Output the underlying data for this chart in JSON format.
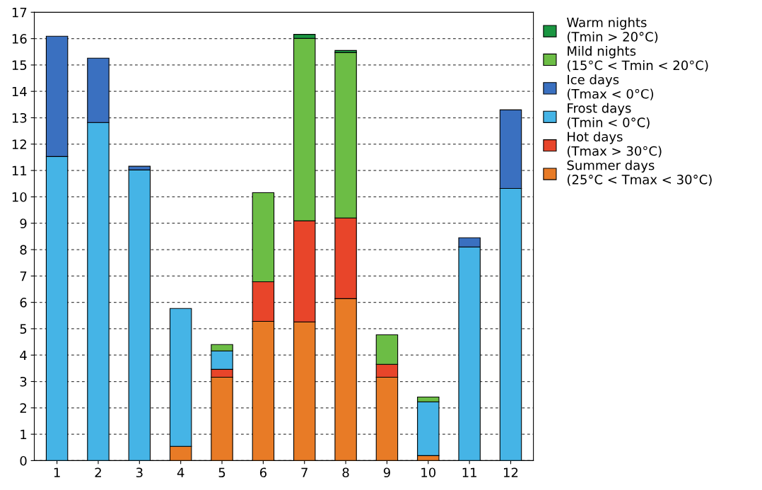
{
  "chart_data": {
    "type": "bar",
    "stacked": true,
    "categories": [
      "1",
      "2",
      "3",
      "4",
      "5",
      "6",
      "7",
      "8",
      "9",
      "10",
      "11",
      "12"
    ],
    "series": [
      {
        "name": "Summer days\n(25°C < Tmax < 30°C)",
        "color": "#e87b26",
        "values": [
          null,
          null,
          null,
          0.54,
          3.16,
          5.28,
          5.26,
          6.14,
          3.16,
          0.19,
          null,
          null
        ]
      },
      {
        "name": "Hot days\n(Tmax > 30°C)",
        "color": "#e8452a",
        "values": [
          null,
          null,
          null,
          null,
          0.3,
          1.5,
          3.83,
          3.06,
          0.49,
          null,
          null,
          null
        ]
      },
      {
        "name": "Frost days\n(Tmin < 0°C)",
        "color": "#45b4e6",
        "values": [
          11.53,
          12.82,
          11.02,
          5.23,
          0.7,
          null,
          null,
          null,
          null,
          2.04,
          8.1,
          10.32
        ]
      },
      {
        "name": "Ice days\n(Tmax < 0°C)",
        "color": "#3a70c0",
        "values": [
          4.56,
          2.44,
          0.14,
          null,
          null,
          null,
          null,
          null,
          null,
          null,
          0.35,
          2.98
        ]
      },
      {
        "name": "Mild nights\n(15°C < Tmin < 20°C)",
        "color": "#6cbd45",
        "values": [
          null,
          null,
          null,
          null,
          0.24,
          3.38,
          6.92,
          6.27,
          1.12,
          0.18,
          null,
          null
        ]
      },
      {
        "name": "Warm nights\n(Tmin > 20°C)",
        "color": "#1a9641",
        "values": [
          null,
          null,
          null,
          null,
          null,
          null,
          0.15,
          0.08,
          null,
          null,
          null,
          null
        ]
      }
    ],
    "ylim": [
      0,
      17
    ],
    "yticks": [
      0,
      1,
      2,
      3,
      4,
      5,
      6,
      7,
      8,
      9,
      10,
      11,
      12,
      13,
      14,
      15,
      16,
      17
    ],
    "grid": "y",
    "legend": "right"
  }
}
